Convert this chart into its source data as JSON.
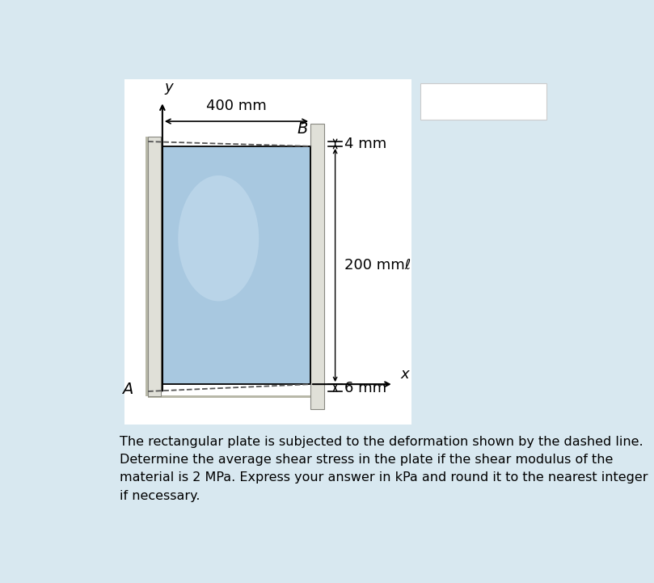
{
  "bg_color": "#d8e8f0",
  "diagram_bg": "#ffffff",
  "plate_fill": "#a8c8e0",
  "plate_fill_light": "#c8dff0",
  "wall_color": "#e0e0d8",
  "wall_edge": "#888880",
  "shadow_color": "#b8b8a8",
  "title_text": "y",
  "label_400mm": "400 mm",
  "label_4mm": "4 mm",
  "label_200mm": "200 mmℓ",
  "label_6mm": "6 mm",
  "label_B": "B",
  "label_A": "A",
  "label_x": "x",
  "description_line1": "The rectangular plate is subjected to the deformation shown by the dashed line.",
  "description_line2": "Determine the average shear stress in the plate if the shear modulus of the",
  "description_line3": "material is 2 MPa. Express your answer in kPa and round it to the nearest integer",
  "description_line4": "if necessary.",
  "text_fontsize": 11.5,
  "label_fontsize": 13,
  "italic_fontsize": 14
}
